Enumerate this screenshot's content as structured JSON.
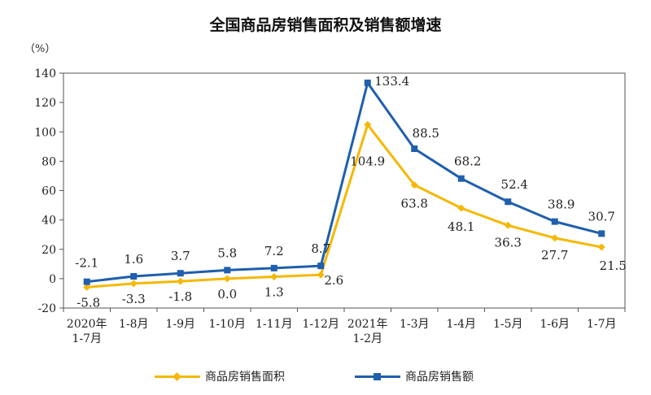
{
  "chart_data": {
    "type": "line",
    "title": "全国商品房销售面积及销售额增速",
    "ylabel": "（%）",
    "ylim": [
      -20,
      140
    ],
    "yticks": [
      -20,
      0,
      20,
      40,
      60,
      80,
      100,
      120,
      140
    ],
    "categories": [
      [
        "2020年",
        "1-7月"
      ],
      [
        "1-8月"
      ],
      [
        "1-9月"
      ],
      [
        "1-10月"
      ],
      [
        "1-11月"
      ],
      [
        "1-12月"
      ],
      [
        "2021年",
        "1-2月"
      ],
      [
        "1-3月"
      ],
      [
        "1-4月"
      ],
      [
        "1-5月"
      ],
      [
        "1-6月"
      ],
      [
        "1-7月"
      ]
    ],
    "series": [
      {
        "name": "商品房销售面积",
        "color": "#F5B800",
        "marker": "diamond",
        "values": [
          -5.8,
          -3.3,
          -1.8,
          0.0,
          1.3,
          2.6,
          104.9,
          63.8,
          48.1,
          36.3,
          27.7,
          21.5
        ],
        "labels": [
          "-5.8",
          "-3.3",
          "-1.8",
          "0.0",
          "1.3",
          "2.6",
          "104.9",
          "63.8",
          "48.1",
          "36.3",
          "27.7",
          "21.5"
        ]
      },
      {
        "name": "商品房销售额",
        "color": "#1F5FAD",
        "marker": "square",
        "values": [
          -2.1,
          1.6,
          3.7,
          5.8,
          7.2,
          8.7,
          133.4,
          88.5,
          68.2,
          52.4,
          38.9,
          30.7
        ],
        "labels": [
          "-2.1",
          "1.6",
          "3.7",
          "5.8",
          "7.2",
          "8.7",
          "133.4",
          "88.5",
          "68.2",
          "52.4",
          "38.9",
          "30.7"
        ]
      }
    ],
    "legend_position": "bottom-center"
  }
}
